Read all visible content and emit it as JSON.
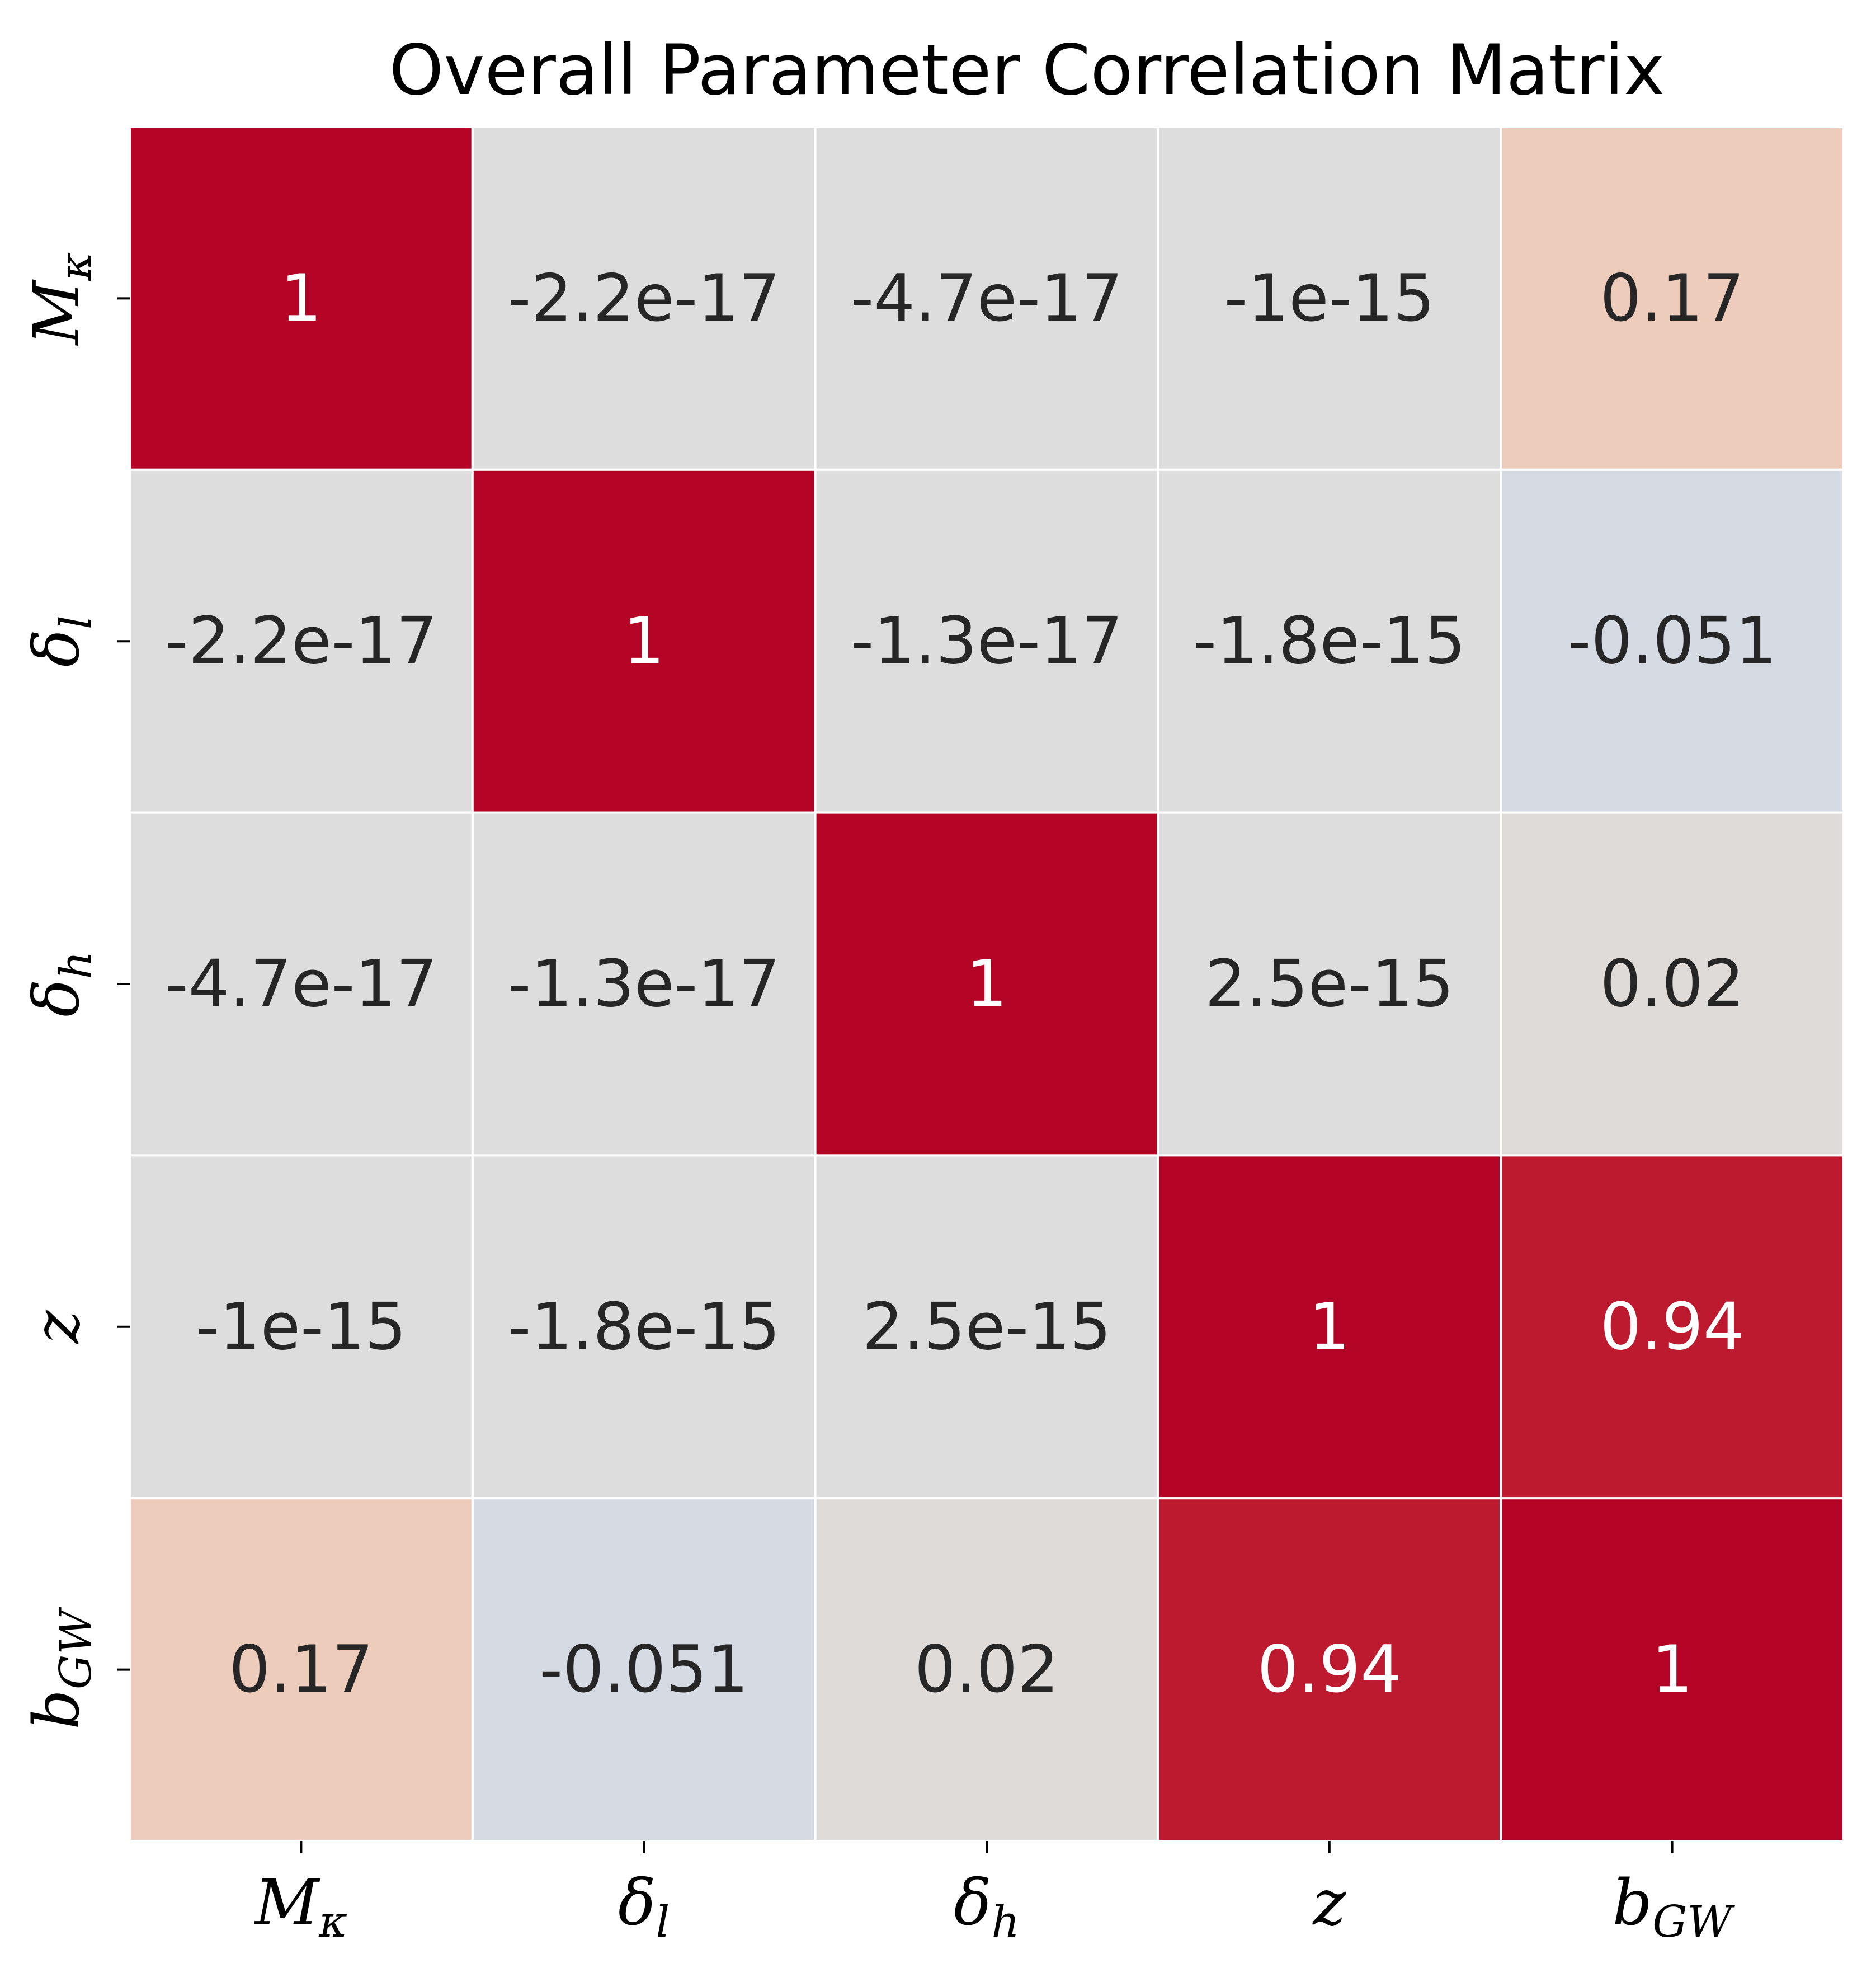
{
  "chart_data": {
    "type": "heatmap",
    "title": "Overall Parameter Correlation Matrix",
    "x_labels": [
      {
        "base": "M",
        "sub": "κ"
      },
      {
        "base": "δ",
        "sub": "l"
      },
      {
        "base": "δ",
        "sub": "h"
      },
      {
        "base": "z",
        "sub": ""
      },
      {
        "base": "b",
        "sub": "GW"
      }
    ],
    "y_labels": [
      {
        "base": "M",
        "sub": "κ"
      },
      {
        "base": "δ",
        "sub": "l"
      },
      {
        "base": "δ",
        "sub": "h"
      },
      {
        "base": "z",
        "sub": ""
      },
      {
        "base": "b",
        "sub": "GW"
      }
    ],
    "values": [
      [
        1,
        -2.2e-17,
        -4.7e-17,
        -1e-15,
        0.17
      ],
      [
        -2.2e-17,
        1,
        -1.3e-17,
        -1.8e-15,
        -0.051
      ],
      [
        -4.7e-17,
        -1.3e-17,
        1,
        2.5e-15,
        0.02
      ],
      [
        -1e-15,
        -1.8e-15,
        2.5e-15,
        1,
        0.94
      ],
      [
        0.17,
        -0.051,
        0.02,
        0.94,
        1
      ]
    ],
    "annotations": [
      [
        "1",
        "-2.2e-17",
        "-4.7e-17",
        "-1e-15",
        "0.17"
      ],
      [
        "-2.2e-17",
        "1",
        "-1.3e-17",
        "-1.8e-15",
        "-0.051"
      ],
      [
        "-4.7e-17",
        "-1.3e-17",
        "1",
        "2.5e-15",
        "0.02"
      ],
      [
        "-1e-15",
        "-1.8e-15",
        "2.5e-15",
        "1",
        "0.94"
      ],
      [
        "0.17",
        "-0.051",
        "0.02",
        "0.94",
        "1"
      ]
    ],
    "vmin": -1,
    "vmax": 1,
    "colormap": "coolwarm",
    "colorbar": false,
    "grid_line_color": "#ffffff"
  }
}
